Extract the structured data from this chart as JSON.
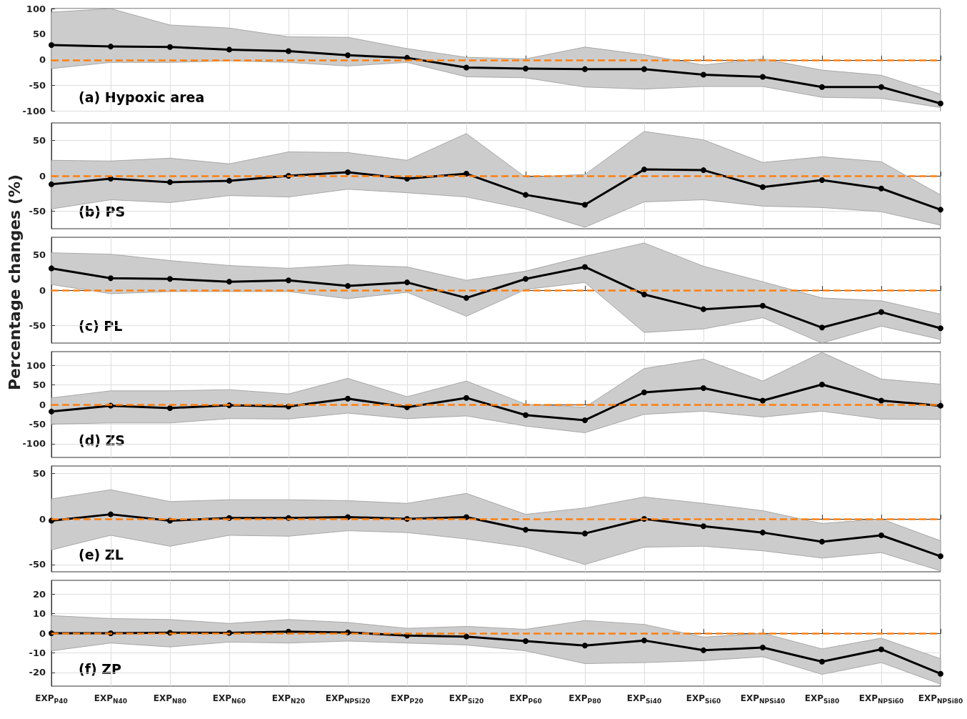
{
  "chart_data": [
    {
      "type": "line",
      "categories": [
        null,
        null,
        null,
        null,
        null,
        null,
        null,
        null,
        null,
        null,
        null,
        null,
        null,
        null,
        null,
        null
      ],
      "series": [
        {
          "color": "#000000",
          "values": [
            29,
            26,
            25,
            20,
            17,
            9,
            4,
            -15,
            -17,
            -18,
            -18,
            -29,
            -33,
            -53,
            -53,
            -85
          ],
          "upper": [
            93,
            100,
            68,
            62,
            45,
            44,
            22,
            5,
            2,
            25,
            10,
            -10,
            2,
            -20,
            -30,
            -67
          ],
          "lower": [
            -17,
            -5,
            -5,
            -2,
            -5,
            -12,
            -5,
            -33,
            -35,
            -53,
            -57,
            -52,
            -52,
            -73,
            -75,
            -93
          ]
        }
      ],
      "ylim": [
        -100,
        100
      ],
      "yticks": [
        -100,
        -50,
        0,
        50,
        100
      ],
      "grid": true,
      "marker": "circle",
      "tick_labels": "y",
      "ref_lines": [
        {
          "axis": "y",
          "value": 0,
          "color": "#ff7f0e",
          "line_style": "dashed"
        }
      ],
      "annotations": [
        "(a) Hypoxic area"
      ]
    },
    {
      "type": "line",
      "categories": [
        null,
        null,
        null,
        null,
        null,
        null,
        null,
        null,
        null,
        null,
        null,
        null,
        null,
        null,
        null,
        null
      ],
      "series": [
        {
          "color": "#000000",
          "values": [
            -12,
            -4,
            -9,
            -7,
            0,
            5,
            -4,
            3,
            -27,
            -41,
            9,
            8,
            -16,
            -6,
            -18,
            -48
          ],
          "upper": [
            22,
            21,
            25,
            17,
            34,
            33,
            22,
            60,
            -2,
            2,
            63,
            51,
            19,
            27,
            20,
            -27
          ],
          "lower": [
            -47,
            -34,
            -38,
            -28,
            -30,
            -19,
            -24,
            -30,
            -47,
            -73,
            -37,
            -34,
            -43,
            -45,
            -51,
            -70
          ]
        }
      ],
      "ylim": [
        -75,
        75
      ],
      "yticks": [
        -50,
        0,
        50
      ],
      "grid": true,
      "marker": "circle",
      "tick_labels": "y",
      "ref_lines": [
        {
          "axis": "y",
          "value": 0,
          "color": "#ff7f0e",
          "line_style": "dashed"
        }
      ],
      "annotations": [
        "(b) PS"
      ]
    },
    {
      "type": "line",
      "categories": [
        null,
        null,
        null,
        null,
        null,
        null,
        null,
        null,
        null,
        null,
        null,
        null,
        null,
        null,
        null,
        null
      ],
      "series": [
        {
          "color": "#000000",
          "values": [
            31,
            17,
            16,
            12,
            14,
            6,
            11,
            -11,
            16,
            33,
            -6,
            -27,
            -22,
            -53,
            -31,
            -54
          ],
          "upper": [
            53,
            51,
            42,
            35,
            31,
            36,
            33,
            14,
            27,
            48,
            67,
            34,
            12,
            -11,
            -15,
            -34
          ],
          "lower": [
            8,
            -5,
            -2,
            -2,
            -2,
            -12,
            -3,
            -37,
            1,
            11,
            -60,
            -55,
            -39,
            -75,
            -51,
            -70
          ]
        }
      ],
      "ylim": [
        -75,
        75
      ],
      "yticks": [
        -50,
        0,
        50
      ],
      "grid": true,
      "marker": "circle",
      "tick_labels": "y",
      "ylabel": "Percentage changes (%)",
      "ref_lines": [
        {
          "axis": "y",
          "value": 0,
          "color": "#ff7f0e",
          "line_style": "dashed"
        }
      ],
      "annotations": [
        "(c) PL"
      ]
    },
    {
      "type": "line",
      "categories": [
        null,
        null,
        null,
        null,
        null,
        null,
        null,
        null,
        null,
        null,
        null,
        null,
        null,
        null,
        null,
        null
      ],
      "series": [
        {
          "color": "#000000",
          "values": [
            -18,
            -3,
            -9,
            -2,
            -5,
            15,
            -7,
            17,
            -27,
            -40,
            31,
            42,
            10,
            51,
            10,
            -3
          ],
          "upper": [
            17,
            35,
            35,
            38,
            27,
            67,
            20,
            60,
            1,
            -7,
            92,
            116,
            60,
            133,
            65,
            52
          ],
          "lower": [
            -50,
            -47,
            -47,
            -36,
            -37,
            -22,
            -36,
            -29,
            -55,
            -72,
            -25,
            -17,
            -32,
            -17,
            -37,
            -38
          ]
        }
      ],
      "ylim": [
        -135,
        135
      ],
      "yticks": [
        -100,
        -50,
        0,
        50,
        100
      ],
      "grid": true,
      "marker": "circle",
      "tick_labels": "y",
      "ref_lines": [
        {
          "axis": "y",
          "value": 0,
          "color": "#ff7f0e",
          "line_style": "dashed"
        }
      ],
      "annotations": [
        "(d) ZS"
      ]
    },
    {
      "type": "line",
      "categories": [
        null,
        null,
        null,
        null,
        null,
        null,
        null,
        null,
        null,
        null,
        null,
        null,
        null,
        null,
        null,
        null
      ],
      "series": [
        {
          "color": "#000000",
          "values": [
            -2,
            5,
            -2,
            1,
            1,
            2,
            0,
            2,
            -12,
            -16,
            0,
            -8,
            -15,
            -25,
            -18,
            -41
          ],
          "upper": [
            22,
            32,
            19,
            21,
            21,
            20,
            17,
            28,
            5,
            12,
            24,
            17,
            9,
            -5,
            0,
            -24
          ],
          "lower": [
            -34,
            -18,
            -30,
            -18,
            -19,
            -13,
            -15,
            -22,
            -31,
            -50,
            -31,
            -30,
            -35,
            -43,
            -37,
            -57
          ]
        }
      ],
      "ylim": [
        -58,
        58
      ],
      "yticks": [
        -50,
        0,
        50
      ],
      "grid": true,
      "marker": "circle",
      "tick_labels": "y",
      "ref_lines": [
        {
          "axis": "y",
          "value": 0,
          "color": "#ff7f0e",
          "line_style": "dashed"
        }
      ],
      "annotations": [
        "(e) ZL"
      ]
    },
    {
      "type": "line",
      "categories": [
        "EXP$_{P40}$",
        "EXP$_{N40}$",
        "EXP$_{N80}$",
        "EXP$_{N60}$",
        "EXP$_{N20}$",
        "EXP$_{NPSi20}$",
        "EXP$_{P20}$",
        "EXP$_{Si20}$",
        "EXP$_{P60}$",
        "EXP$_{P80}$",
        "EXP$_{Si40}$",
        "EXP$_{Si60}$",
        "EXP$_{NPSi40}$",
        "EXP$_{Si80}$",
        "EXP$_{NPSi60}$",
        "EXP$_{NPSi80}$"
      ],
      "series": [
        {
          "color": "#000000",
          "values": [
            0,
            0,
            0.3,
            0.2,
            0.8,
            0.4,
            -1.2,
            -1.7,
            -4,
            -6.3,
            -3.7,
            -8.7,
            -7.3,
            -14.5,
            -8.2,
            -20.7
          ],
          "upper": [
            9,
            7.5,
            7,
            5,
            7,
            5.5,
            2.5,
            3.5,
            2,
            6.5,
            4.5,
            -2,
            0,
            -8,
            -2.5,
            -13
          ],
          "lower": [
            -9,
            -5,
            -7,
            -4.5,
            -5,
            -4,
            -5,
            -6,
            -9,
            -15.5,
            -15,
            -14,
            -12,
            -21,
            -15,
            -26
          ]
        }
      ],
      "ylim": [
        -27,
        27
      ],
      "yticks": [
        -20,
        -10,
        0,
        10,
        20
      ],
      "grid": true,
      "marker": "circle",
      "ref_lines": [
        {
          "axis": "y",
          "value": 0,
          "color": "#ff7f0e",
          "line_style": "dashed"
        }
      ],
      "annotations": [
        "(f) ZP"
      ]
    }
  ]
}
